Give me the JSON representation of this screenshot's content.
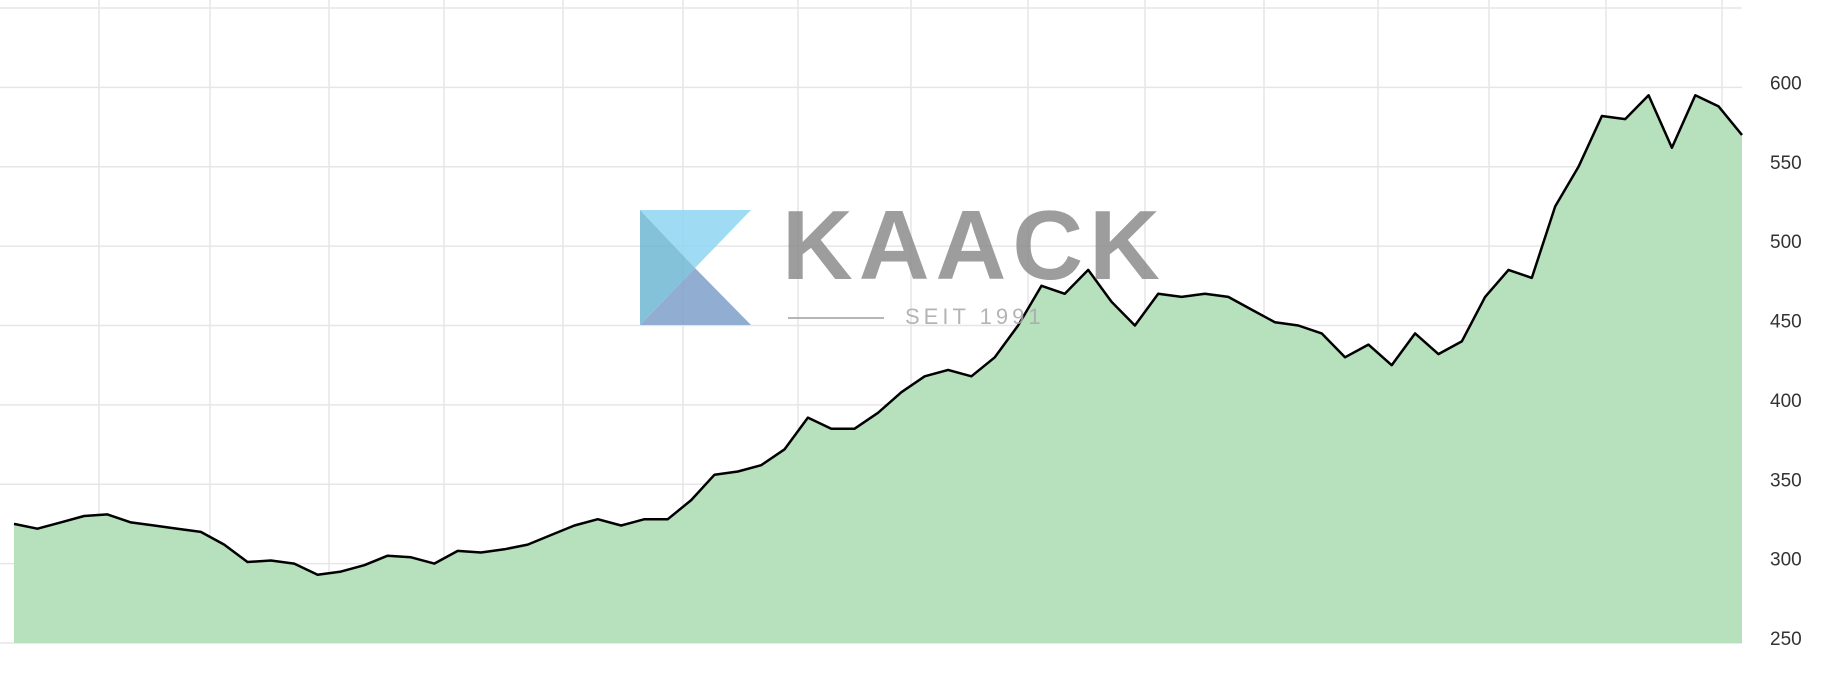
{
  "chart_data": {
    "type": "area",
    "watermark": {
      "brand": "KAACK",
      "tagline": "SEIT 1991"
    },
    "values": [
      325,
      322,
      326,
      330,
      331,
      326,
      324,
      322,
      320,
      312,
      301,
      302,
      300,
      293,
      295,
      299,
      305,
      304,
      300,
      308,
      307,
      309,
      312,
      318,
      324,
      328,
      324,
      328,
      328,
      340,
      356,
      358,
      362,
      372,
      392,
      385,
      385,
      395,
      408,
      418,
      422,
      418,
      430,
      450,
      475,
      470,
      485,
      465,
      450,
      470,
      468,
      470,
      468,
      460,
      452,
      450,
      445,
      430,
      438,
      425,
      445,
      432,
      440,
      468,
      485,
      480,
      525,
      550,
      582,
      580,
      595,
      562,
      595,
      588,
      570
    ],
    "ylim": [
      250,
      650
    ],
    "yticks": [
      250,
      300,
      350,
      400,
      450,
      500,
      550,
      600
    ],
    "line_color": "#000000",
    "fill_color": "#b7e1bd",
    "grid": true,
    "y_axis_side": "right"
  }
}
